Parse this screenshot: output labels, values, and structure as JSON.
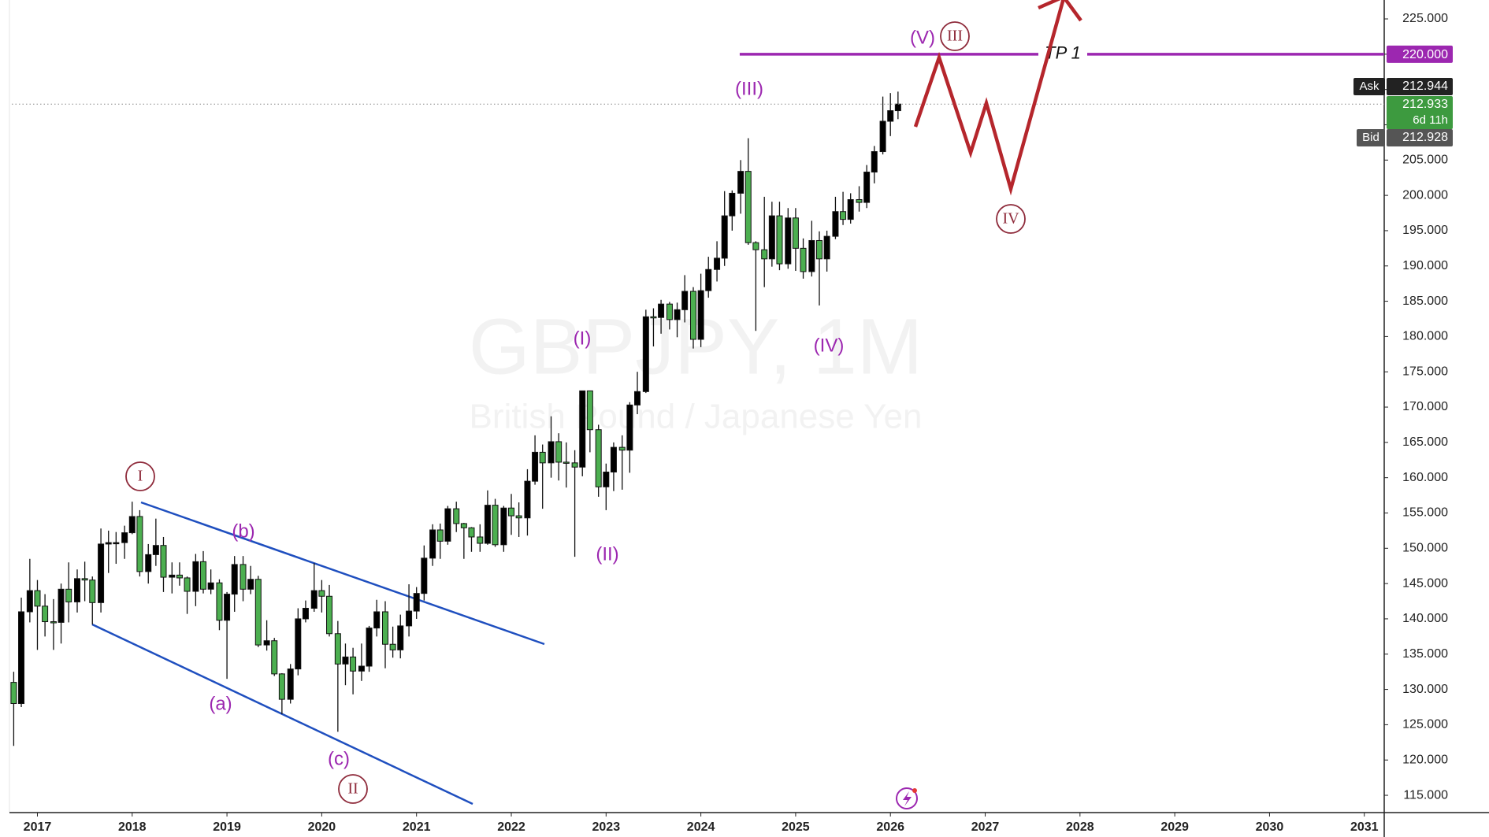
{
  "chart_data": {
    "type": "candlestick",
    "watermark": {
      "symbol": "GBPJPY, 1M",
      "description": "British Pound / Japanese Yen"
    },
    "up_color": "#000000",
    "down_color": "#4caf50",
    "x": [
      2016.75,
      2016.83,
      2016.92,
      2017,
      2017.08,
      2017.17,
      2017.25,
      2017.33,
      2017.42,
      2017.5,
      2017.58,
      2017.67,
      2017.75,
      2017.83,
      2017.92,
      2018,
      2018.08,
      2018.17,
      2018.25,
      2018.33,
      2018.42,
      2018.5,
      2018.58,
      2018.67,
      2018.75,
      2018.83,
      2018.92,
      2019,
      2019.08,
      2019.17,
      2019.25,
      2019.33,
      2019.42,
      2019.5,
      2019.58,
      2019.67,
      2019.75,
      2019.83,
      2019.92,
      2020,
      2020.08,
      2020.17,
      2020.25,
      2020.33,
      2020.42,
      2020.5,
      2020.58,
      2020.67,
      2020.75,
      2020.83,
      2020.92,
      2021,
      2021.08,
      2021.17,
      2021.25,
      2021.33,
      2021.42,
      2021.5,
      2021.58,
      2021.67,
      2021.75,
      2021.83,
      2021.92,
      2022,
      2022.08,
      2022.17,
      2022.25,
      2022.33,
      2022.42,
      2022.5,
      2022.58,
      2022.67,
      2022.75,
      2022.83,
      2022.92,
      2023,
      2023.08,
      2023.17,
      2023.25,
      2023.33,
      2023.42,
      2023.5,
      2023.58,
      2023.67,
      2023.75,
      2023.83,
      2023.92,
      2024,
      2024.08,
      2024.17,
      2024.25,
      2024.33,
      2024.42,
      2024.5,
      2024.58,
      2024.67,
      2024.75,
      2024.83,
      2024.92,
      2025,
      2025.08,
      2025.17,
      2025.25,
      2025.33,
      2025.42,
      2025.5,
      2025.58,
      2025.67,
      2025.75,
      2025.83,
      2025.92,
      2026,
      2026.08
    ],
    "open": [
      131,
      128,
      141,
      144,
      141.8,
      139.6,
      139.5,
      144.2,
      142.4,
      145.7,
      145.5,
      142.3,
      150.6,
      150.8,
      150.8,
      152.2,
      154.5,
      146.7,
      149.1,
      150.4,
      145.9,
      146.2,
      145.8,
      143.9,
      148.1,
      144.2,
      145.1,
      139.8,
      143.5,
      147.7,
      144.2,
      145.6,
      136.3,
      136.9,
      132.2,
      128.6,
      132.9,
      140.0,
      141.5,
      144.0,
      143.2,
      137.9,
      133.6,
      134.6,
      132.6,
      133.3,
      138.7,
      141.0,
      136.4,
      135.6,
      139.0,
      141.1,
      143.6,
      148.6,
      152.6,
      151.0,
      155.6,
      153.5,
      152.9,
      151.6,
      150.7,
      156.1,
      150.5,
      155.7,
      154.6,
      154.3,
      159.5,
      163.6,
      162.1,
      165.1,
      162.2,
      162.1,
      161.5,
      172.3,
      166.8,
      158.7,
      160.8,
      164.3,
      163.9,
      170.3,
      172.2,
      182.8,
      182.7,
      184.6,
      182.4,
      183.8,
      186.4,
      179.6,
      186.5,
      189.5,
      191.1,
      197.1,
      200.3,
      203.4,
      193.3,
      192.3,
      191.0,
      197.1,
      190.3,
      196.8,
      192.5,
      189.2,
      193.6,
      191.0,
      194.2,
      197.7,
      196.6,
      199.4,
      199.0,
      203.3,
      206.2,
      210.5,
      212.0
    ],
    "high": [
      132.5,
      143,
      148.5,
      145.5,
      143.5,
      142.8,
      145,
      148,
      147,
      148.1,
      146,
      152.8,
      152.5,
      152.3,
      153.2,
      156.6,
      155.4,
      150.6,
      154.2,
      151.6,
      148,
      148,
      146,
      149.2,
      149.6,
      147,
      145.6,
      143.8,
      148.9,
      148.9,
      147.5,
      146.1,
      139.8,
      137.3,
      132.3,
      133.6,
      141.5,
      142.6,
      147.9,
      145.5,
      144.8,
      139.7,
      136.5,
      135.9,
      136.5,
      139,
      142.7,
      142.5,
      138.9,
      140.6,
      144.9,
      144.5,
      150.4,
      153.4,
      153.5,
      156,
      156.6,
      153.6,
      153,
      153.4,
      158.2,
      157,
      156,
      157.7,
      156.5,
      161.2,
      166,
      164.7,
      168.7,
      166.3,
      165,
      163.9,
      172.3,
      172.3,
      167.5,
      162,
      165,
      166,
      170.7,
      175,
      183.8,
      184,
      185.2,
      184.9,
      184.8,
      188.7,
      187,
      188.9,
      191.3,
      193.5,
      200.6,
      200.7,
      205,
      208.1,
      193.5,
      199.8,
      199.1,
      199.1,
      198.2,
      198.2,
      193.9,
      196.4,
      194.9,
      195,
      199.8,
      200.5,
      200.3,
      201.3,
      204.3,
      207,
      214,
      214.5,
      214.7
    ],
    "low": [
      122,
      127.5,
      139.5,
      135.6,
      137.5,
      135.6,
      136.5,
      139.5,
      140.9,
      142.5,
      139.2,
      140.9,
      146.5,
      147.8,
      148.5,
      152,
      146,
      145,
      147.5,
      143.8,
      143.6,
      144.7,
      140.7,
      141.8,
      143.6,
      143.5,
      138.4,
      131.5,
      141,
      142.5,
      143.5,
      136,
      135.5,
      131.9,
      126.5,
      128,
      132,
      139.5,
      141,
      140.9,
      137.5,
      124,
      130.6,
      129.3,
      131.2,
      132.5,
      137.5,
      133,
      134.5,
      134.4,
      137.5,
      140,
      142.6,
      147.5,
      148.5,
      150.5,
      152.3,
      148.5,
      149.5,
      149.5,
      150.5,
      150.2,
      149.5,
      151.9,
      151.6,
      151.8,
      159,
      155.6,
      160,
      159.6,
      158.6,
      148.8,
      160.2,
      163.6,
      157.3,
      155.4,
      158.1,
      158.3,
      160.7,
      169,
      172,
      178.6,
      180.4,
      181,
      179.9,
      182,
      178.3,
      178.5,
      185.5,
      187.8,
      190,
      195,
      197.4,
      193,
      180.8,
      187,
      189.9,
      189.4,
      189.6,
      189.3,
      188.2,
      188.5,
      184.4,
      189.2,
      193.8,
      195.8,
      196,
      197.7,
      198.2,
      201.7,
      205.8,
      208.4,
      210.8
    ],
    "close": [
      128,
      141,
      144,
      141.8,
      139.6,
      139.5,
      144.2,
      142.4,
      145.7,
      145.5,
      142.3,
      150.6,
      150.8,
      150.8,
      152.2,
      154.5,
      146.7,
      149.1,
      150.4,
      145.9,
      146.2,
      145.8,
      143.9,
      148.1,
      144.2,
      145.1,
      139.8,
      143.5,
      147.7,
      144.2,
      145.6,
      136.3,
      136.9,
      132.2,
      128.6,
      132.9,
      140.0,
      141.5,
      144.0,
      143.2,
      137.9,
      133.6,
      134.6,
      132.6,
      133.3,
      138.7,
      141.0,
      136.4,
      135.6,
      139.0,
      141.1,
      143.6,
      148.6,
      152.6,
      151.0,
      155.6,
      153.5,
      152.9,
      151.6,
      150.7,
      156.1,
      150.5,
      155.7,
      154.6,
      154.3,
      159.5,
      163.6,
      162.1,
      165.1,
      162.2,
      162.1,
      161.5,
      172.3,
      166.8,
      158.7,
      160.8,
      164.3,
      163.9,
      170.3,
      172.2,
      182.8,
      182.7,
      184.6,
      182.4,
      183.8,
      186.4,
      179.6,
      186.5,
      189.5,
      191.1,
      197.1,
      200.3,
      203.4,
      193.3,
      192.3,
      191.0,
      197.1,
      190.3,
      196.8,
      192.5,
      189.2,
      193.6,
      191.0,
      194.2,
      197.7,
      196.6,
      199.4,
      199.0,
      203.3,
      206.2,
      210.5,
      212.0,
      212.933
    ],
    "xlim": [
      2016.73,
      2031.21
    ],
    "xticks": [
      2017,
      2018,
      2019,
      2020,
      2021,
      2022,
      2023,
      2024,
      2025,
      2026,
      2027,
      2028,
      2029,
      2030,
      2031
    ],
    "ylim": [
      112.55,
      227.68
    ],
    "yticks": [
      {
        "value": 115,
        "label": "115.000"
      },
      {
        "value": 120,
        "label": "120.000"
      },
      {
        "value": 125,
        "label": "125.000"
      },
      {
        "value": 130,
        "label": "130.000"
      },
      {
        "value": 135,
        "label": "135.000"
      },
      {
        "value": 140,
        "label": "140.000"
      },
      {
        "value": 145,
        "label": "145.000"
      },
      {
        "value": 150,
        "label": "150.000"
      },
      {
        "value": 155,
        "label": "155.000"
      },
      {
        "value": 160,
        "label": "160.000"
      },
      {
        "value": 165,
        "label": "165.000"
      },
      {
        "value": 170,
        "label": "170.000"
      },
      {
        "value": 175,
        "label": "175.000"
      },
      {
        "value": 180,
        "label": "180.000"
      },
      {
        "value": 185,
        "label": "185.000"
      },
      {
        "value": 190,
        "label": "190.000"
      },
      {
        "value": 195,
        "label": "195.000"
      },
      {
        "value": 200,
        "label": "200.000"
      },
      {
        "value": 205,
        "label": "205.000"
      },
      {
        "value": 210,
        "label": "210.000"
      },
      {
        "value": 215,
        "label": "215.000"
      },
      {
        "value": 220,
        "label": "220.000"
      },
      {
        "value": 225,
        "label": "225.000"
      }
    ],
    "grid": false,
    "target": {
      "name": "TP 1",
      "start_x": 2024.41,
      "level": {
        "value": 220,
        "label": "220.000"
      },
      "color": "#9c27b0"
    },
    "quote": {
      "ask_label": "Ask",
      "ask": 212.944,
      "last": 212.933,
      "countdown": "6d 11h",
      "bid_label": "Bid",
      "bid": 212.928
    },
    "annotations": [
      "I",
      "(b)",
      "(a)",
      "(c)",
      "II",
      "(I)",
      "(II)",
      "(III)",
      "(IV)",
      "(V)",
      "III",
      "IV"
    ]
  }
}
